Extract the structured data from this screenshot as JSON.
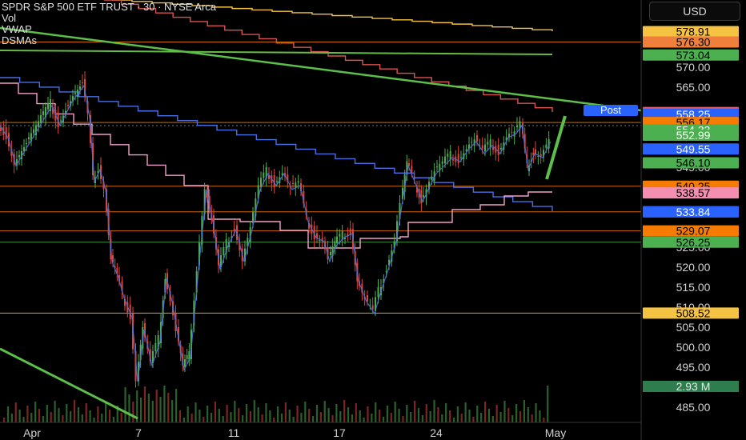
{
  "header": {
    "title": "SPDR S&P 500 ETF TRUST · 30 · NYSE Arca",
    "indicators": [
      "Vol",
      "VWAP",
      "DSMAs"
    ]
  },
  "currency_button": "USD",
  "post_label": "Post",
  "colors": {
    "background": "#000000",
    "candle_up": "#4caf50",
    "candle_down": "#e0453a",
    "trendline": "#5cbf4a",
    "blue_line": "#4a6fe0",
    "pink_line": "#f0a0c8",
    "step_orange": "#f5a623",
    "step_red": "#d9534f",
    "step_green": "#66bb44"
  },
  "chart_data": {
    "type": "candlestick",
    "title": "SPDR S&P 500 ETF TRUST · 30 · NYSE Arca",
    "x_tick_labels": [
      "Apr",
      "7",
      "11",
      "17",
      "24",
      "May"
    ],
    "y_tick_labels": [
      "570.00",
      "565.00",
      "545.00",
      "525.00",
      "520.00",
      "515.00",
      "510.00",
      "505.00",
      "500.00",
      "495.00",
      "485.00"
    ],
    "ylim": [
      483,
      582
    ],
    "price_labels": [
      {
        "value": "578.91",
        "bg": "#f5c342",
        "fg": "#000000"
      },
      {
        "value": "576.30",
        "bg": "#f07f3c",
        "fg": "#000000"
      },
      {
        "value": "573.04",
        "bg": "#4caf50",
        "fg": "#000000"
      },
      {
        "value": "558.67",
        "bg": "#e35d6a",
        "fg": "#000000"
      },
      {
        "value": "558.25",
        "bg": "#2962ff",
        "fg": "#ffffff"
      },
      {
        "value": "556.17",
        "bg": "#f57c00",
        "fg": "#000000"
      },
      {
        "value": "554.33",
        "bg": "#4caf50",
        "fg": "#ffffff"
      },
      {
        "value": "552.99",
        "bg": "#4caf50",
        "fg": "#ffffff"
      },
      {
        "value": "549.55",
        "bg": "#2962ff",
        "fg": "#ffffff"
      },
      {
        "value": "546.10",
        "bg": "#4caf50",
        "fg": "#000000"
      },
      {
        "value": "540.25",
        "bg": "#f57c00",
        "fg": "#000000"
      },
      {
        "value": "538.57",
        "bg": "#f48fb1",
        "fg": "#000000"
      },
      {
        "value": "533.86",
        "bg": "#f57c00",
        "fg": "#000000"
      },
      {
        "value": "533.84",
        "bg": "#2962ff",
        "fg": "#ffffff"
      },
      {
        "value": "529.07",
        "bg": "#f57c00",
        "fg": "#000000"
      },
      {
        "value": "526.25",
        "bg": "#4caf50",
        "fg": "#000000"
      },
      {
        "value": "508.52",
        "bg": "#f5c342",
        "fg": "#000000"
      }
    ],
    "volume_label": "2.93 M",
    "horizontal_levels": [
      {
        "value": 576.3,
        "color": "#f57c00"
      },
      {
        "value": 556.17,
        "color": "#f57c00"
      },
      {
        "value": 540.25,
        "color": "#f57c00"
      },
      {
        "value": 533.86,
        "color": "#f57c00"
      },
      {
        "value": 529.07,
        "color": "#f57c00"
      },
      {
        "value": 526.25,
        "color": "#4caf50"
      },
      {
        "value": 508.52,
        "color": "#f5c342"
      }
    ],
    "price_path": [
      [
        0,
        556
      ],
      [
        10,
        553
      ],
      [
        20,
        546
      ],
      [
        35,
        551
      ],
      [
        50,
        556
      ],
      [
        65,
        561
      ],
      [
        75,
        556
      ],
      [
        90,
        562
      ],
      [
        105,
        566
      ],
      [
        112,
        558
      ],
      [
        118,
        542
      ],
      [
        125,
        545
      ],
      [
        132,
        540
      ],
      [
        140,
        522
      ],
      [
        148,
        518
      ],
      [
        155,
        513
      ],
      [
        165,
        508
      ],
      [
        172,
        492
      ],
      [
        180,
        505
      ],
      [
        190,
        496
      ],
      [
        200,
        502
      ],
      [
        208,
        518
      ],
      [
        215,
        512
      ],
      [
        222,
        504
      ],
      [
        230,
        495
      ],
      [
        238,
        498
      ],
      [
        248,
        520
      ],
      [
        258,
        540
      ],
      [
        266,
        532
      ],
      [
        275,
        520
      ],
      [
        285,
        526
      ],
      [
        295,
        530
      ],
      [
        305,
        522
      ],
      [
        315,
        530
      ],
      [
        325,
        540
      ],
      [
        335,
        544
      ],
      [
        345,
        541
      ],
      [
        355,
        544
      ],
      [
        365,
        540
      ],
      [
        375,
        541
      ],
      [
        385,
        532
      ],
      [
        395,
        528
      ],
      [
        405,
        527
      ],
      [
        412,
        522
      ],
      [
        420,
        526
      ],
      [
        430,
        528
      ],
      [
        440,
        529
      ],
      [
        448,
        517
      ],
      [
        458,
        512
      ],
      [
        468,
        509
      ],
      [
        475,
        514
      ],
      [
        485,
        520
      ],
      [
        495,
        527
      ],
      [
        502,
        536
      ],
      [
        510,
        546
      ],
      [
        520,
        541
      ],
      [
        528,
        537
      ],
      [
        535,
        540
      ],
      [
        545,
        544
      ],
      [
        555,
        546
      ],
      [
        565,
        548
      ],
      [
        575,
        547
      ],
      [
        585,
        550
      ],
      [
        595,
        552
      ],
      [
        605,
        549
      ],
      [
        615,
        551
      ],
      [
        625,
        549
      ],
      [
        635,
        553
      ],
      [
        645,
        554
      ],
      [
        652,
        556
      ],
      [
        660,
        545
      ],
      [
        668,
        549
      ],
      [
        678,
        548
      ],
      [
        688,
        552
      ]
    ],
    "volume_bars_count": 140
  }
}
